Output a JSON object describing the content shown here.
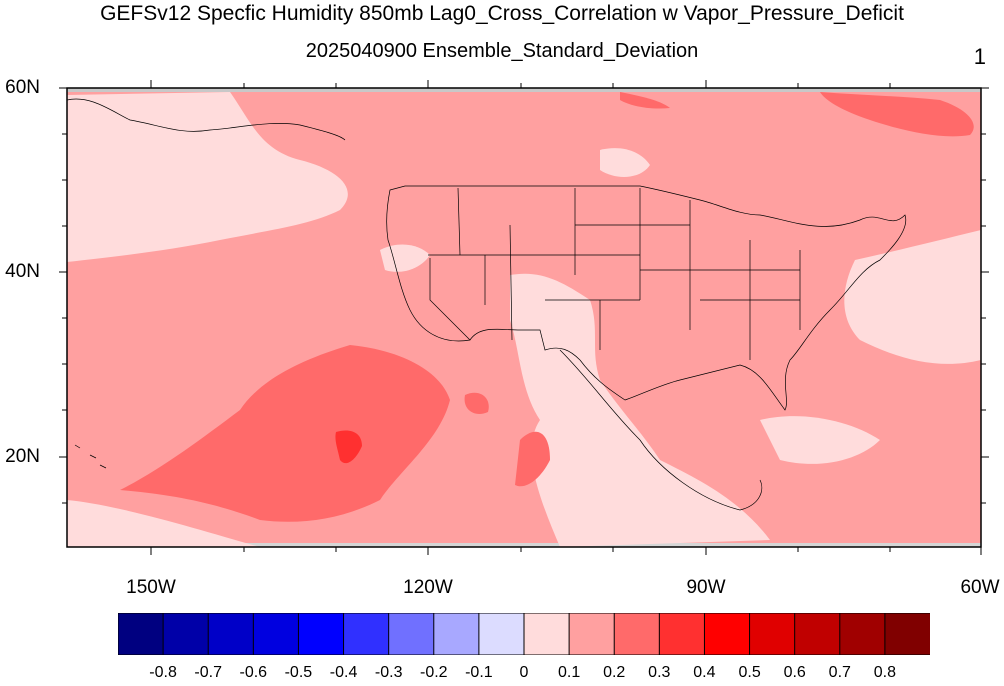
{
  "title": "GEFSv12 Specfic Humidity 850mb Lag0_Cross_Correlation w Vapor_Pressure_Deficit",
  "subtitle": "2025040900 Ensemble_Standard_Deviation",
  "panel_label": "1",
  "map": {
    "lat_labels": [
      "60N",
      "40N",
      "20N"
    ],
    "lon_labels": [
      "150W",
      "120W",
      "90W",
      "60W"
    ],
    "extent": {
      "lon_min": -160,
      "lon_max": -60,
      "lat_min": 10,
      "lat_max": 60
    }
  },
  "colorbar": {
    "labels": [
      "-0.8",
      "-0.7",
      "-0.6",
      "-0.5",
      "-0.4",
      "-0.3",
      "-0.2",
      "-0.1",
      "0",
      "0.1",
      "0.2",
      "0.3",
      "0.4",
      "0.5",
      "0.6",
      "0.7",
      "0.8"
    ],
    "colors": [
      "#000080",
      "#0000a8",
      "#0000c8",
      "#0000e0",
      "#0000ff",
      "#3030ff",
      "#7070ff",
      "#a8a8ff",
      "#dcdcff",
      "#ffdcdc",
      "#ffa0a0",
      "#ff6a6a",
      "#ff3030",
      "#ff0000",
      "#e00000",
      "#c00000",
      "#a00000",
      "#800000"
    ]
  }
}
